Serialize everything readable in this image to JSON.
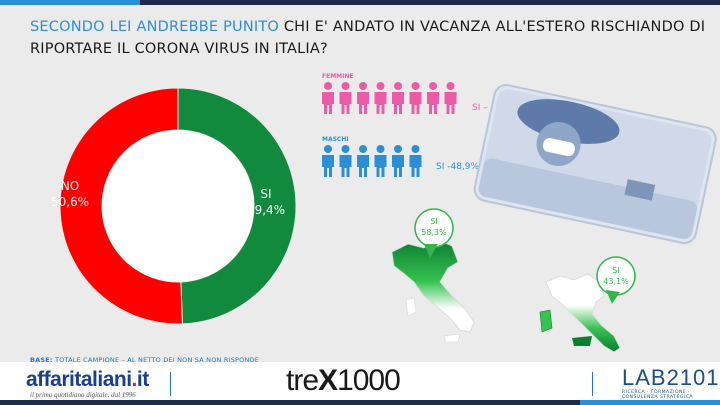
{
  "header": {
    "title_part1": "Secondo lei andrebbe punito",
    "title_part2": " chi e' andato in vacanza all'estero rischiando di riportare il corona virus in Italia?"
  },
  "chart_data": [
    {
      "type": "pie",
      "donut": true,
      "categories": [
        "SI",
        "NO"
      ],
      "values": [
        49.4,
        50.6
      ],
      "labels": [
        "SI\n49,4%",
        "NO\n50,6%"
      ],
      "colors": [
        "#128a3e",
        "#ff0000"
      ]
    },
    {
      "type": "bar",
      "categories": [
        "FEMMINE",
        "MASCHI"
      ],
      "values": [
        50.6,
        48.9
      ],
      "labels": [
        "SI – 50,6%",
        "SI -48,9%"
      ],
      "icon_counts": [
        8,
        6
      ],
      "colors": [
        "#ec5ca6",
        "#2a8fd6"
      ]
    },
    {
      "type": "bar",
      "categories": [
        "Nord",
        "Sud e Isole"
      ],
      "values": [
        58.3,
        43.1
      ],
      "labels": [
        "SI\n58,3%",
        "SI\n43,1%"
      ],
      "colors": [
        "#35b549",
        "#35b549"
      ]
    }
  ],
  "labels": {
    "si_pie": "SI",
    "si_pie_val": "49,4%",
    "no_pie": "NO",
    "no_pie_val": "50,6%",
    "femmine": "FEMMINE",
    "maschi": "MASCHI",
    "femmine_val": "SI – 50,6%",
    "maschi_val": "SI -48,9%",
    "nord_si": "SI",
    "nord_val": "58,3%",
    "sud_si": "SI",
    "sud_val": "43,1%"
  },
  "footer": {
    "base_label": "BASE:",
    "base_text": " TOTALE CAMPIONE – AL NETTO DEI NON SA NON RISPONDE",
    "aff_name": "affaritaliani",
    "aff_dot": ".",
    "aff_tld": "it",
    "aff_sub": "il primo quotidiano digitale, dal 1996",
    "trex_a": "tre",
    "trex_x": "X",
    "trex_b": "1000",
    "lab_name": "LAB2101",
    "lab_sub": "RICERCA · FORMAZIONE · CONSULENZA STRATEGICA"
  },
  "colors": {
    "accent_blue": "#2a8fd6",
    "title_blue": "#2a8fd6",
    "green": "#128a3e",
    "red": "#ff0000",
    "pink": "#ec5ca6",
    "navy": "#1b3f8f"
  }
}
